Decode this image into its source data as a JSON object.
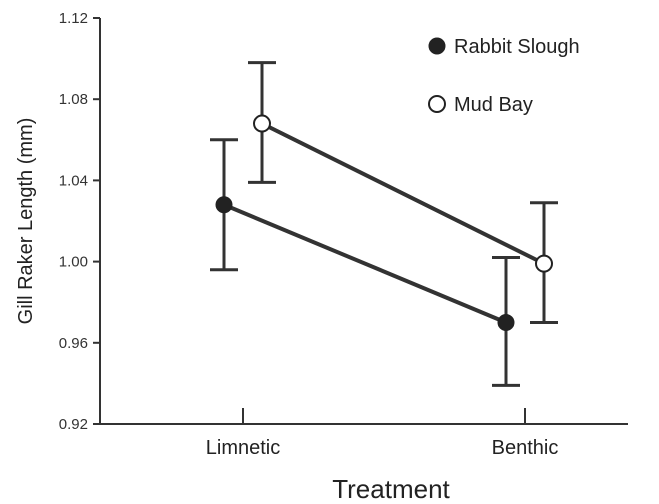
{
  "chart_data": {
    "type": "line",
    "title": "",
    "xlabel": "Treatment",
    "ylabel": "Gill Raker Length (mm)",
    "categories": [
      "Limnetic",
      "Benthic"
    ],
    "ylim": [
      0.92,
      1.12
    ],
    "yticks": [
      "0.92",
      "0.96",
      "1.00",
      "1.04",
      "1.08",
      "1.12"
    ],
    "grid": false,
    "legend_position": "top-right",
    "series": [
      {
        "name": "Rabbit Slough",
        "marker": "filled-circle",
        "color": "#222222",
        "values": [
          1.028,
          0.97
        ],
        "error_low": [
          0.996,
          0.939
        ],
        "error_high": [
          1.06,
          1.002
        ]
      },
      {
        "name": "Mud Bay",
        "marker": "open-circle",
        "color": "#222222",
        "values": [
          1.068,
          0.999
        ],
        "error_low": [
          1.039,
          0.97
        ],
        "error_high": [
          1.098,
          1.029
        ]
      }
    ]
  }
}
